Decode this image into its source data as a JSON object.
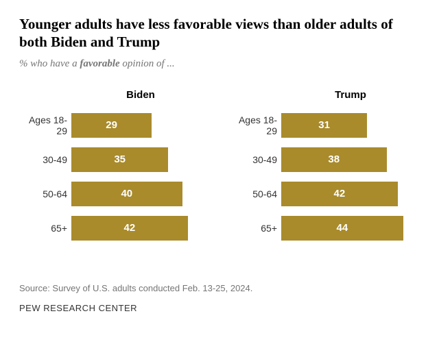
{
  "title": "Younger adults have less favorable views than older adults of both Biden and Trump",
  "subtitle_prefix": "% who have a ",
  "subtitle_emph": "favorable",
  "subtitle_suffix": " opinion of ...",
  "title_fontsize": 21,
  "subtitle_fontsize": 15,
  "column_title_fontsize": 15,
  "label_fontsize": 14,
  "value_fontsize": 15,
  "source_fontsize": 13,
  "footer_fontsize": 13,
  "bar_color": "#a98b2c",
  "value_color": "#ffffff",
  "text_color": "#333333",
  "muted_color": "#757575",
  "background_color": "#ffffff",
  "bar_max_value": 50,
  "charts": [
    {
      "title": "Biden",
      "rows": [
        {
          "label": "Ages 18-29",
          "value": 29
        },
        {
          "label": "30-49",
          "value": 35
        },
        {
          "label": "50-64",
          "value": 40
        },
        {
          "label": "65+",
          "value": 42
        }
      ]
    },
    {
      "title": "Trump",
      "rows": [
        {
          "label": "Ages 18-29",
          "value": 31
        },
        {
          "label": "30-49",
          "value": 38
        },
        {
          "label": "50-64",
          "value": 42
        },
        {
          "label": "65+",
          "value": 44
        }
      ]
    }
  ],
  "source": "Source: Survey of U.S. adults conducted Feb. 13-25, 2024.",
  "footer": "PEW RESEARCH CENTER"
}
